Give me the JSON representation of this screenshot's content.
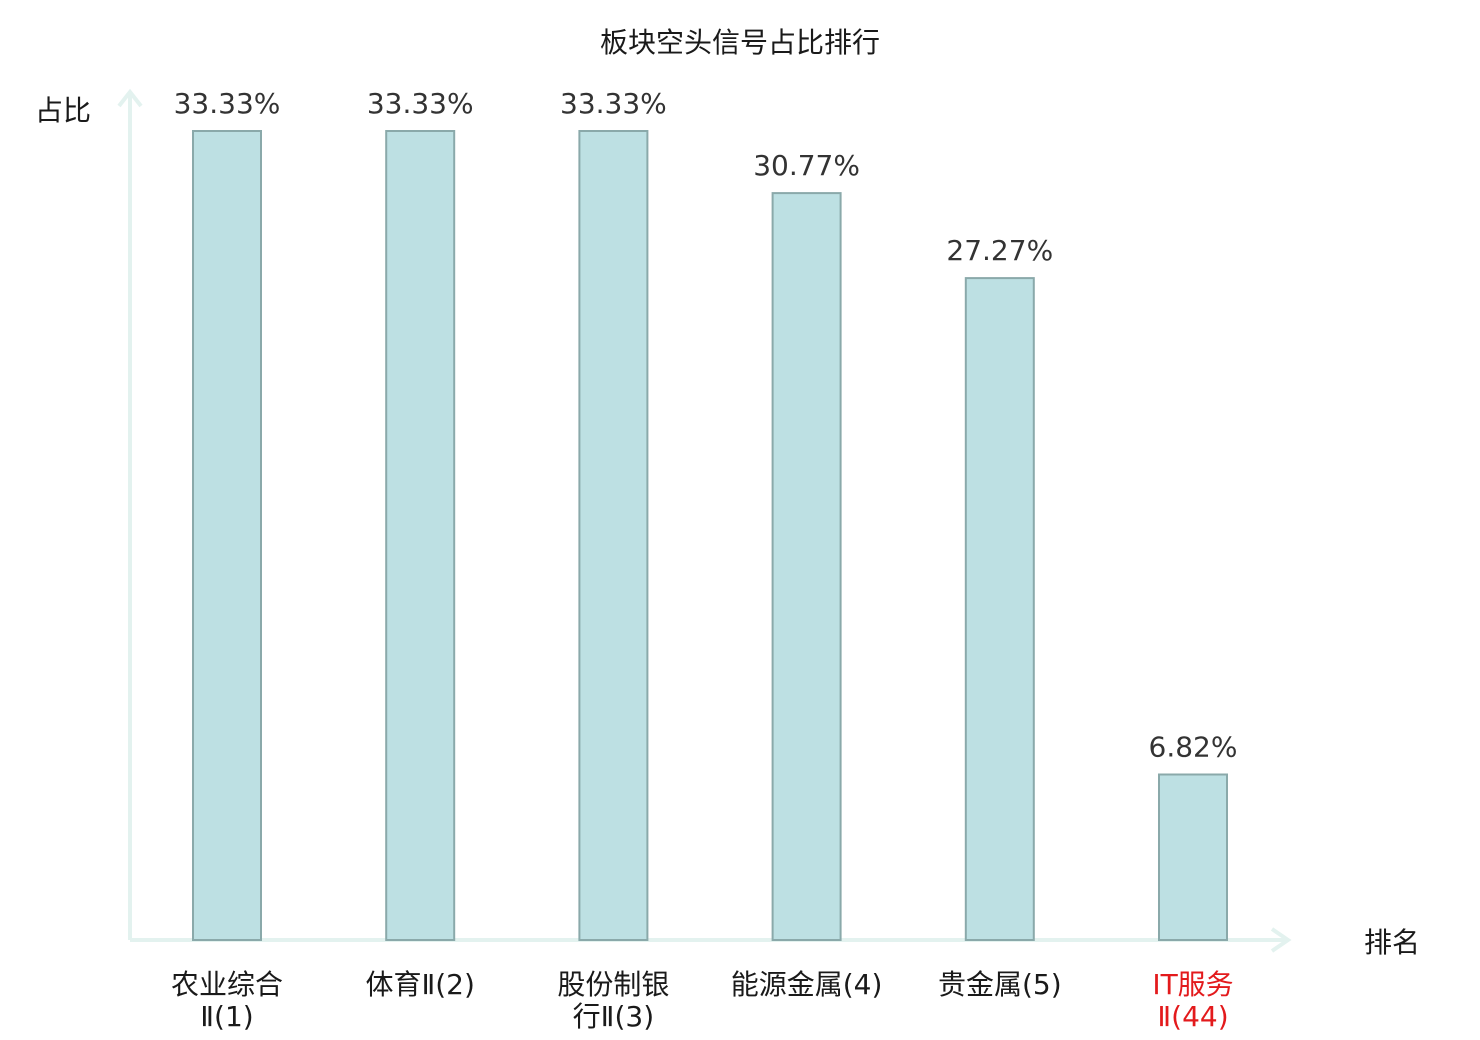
{
  "chart_data": {
    "type": "bar",
    "title": "板块空头信号占比排行",
    "ylabel": "占比",
    "xlabel": "排名",
    "categories": [
      [
        "农业综合",
        "Ⅱ(1)"
      ],
      [
        "体育Ⅱ(2)"
      ],
      [
        "股份制银",
        "行Ⅱ(3)"
      ],
      [
        "能源金属(4)"
      ],
      [
        "贵金属(5)"
      ],
      [
        "IT服务",
        "Ⅱ(44)"
      ]
    ],
    "values": [
      33.33,
      33.33,
      33.33,
      30.77,
      27.27,
      6.82
    ],
    "value_labels": [
      "33.33%",
      "33.33%",
      "33.33%",
      "30.77%",
      "27.27%",
      "6.82%"
    ],
    "ylim": [
      0,
      33.33
    ],
    "grid": false,
    "highlight_index": 5,
    "colors": {
      "bar_fill": "#bde0e3",
      "bar_stroke": "#8aa9aa",
      "axis": "#e3f2ef",
      "highlight_text": "#e31a1c"
    }
  }
}
